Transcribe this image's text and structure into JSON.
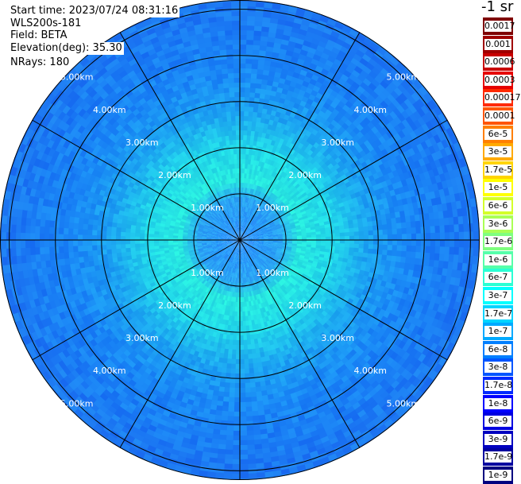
{
  "info": {
    "start_time": "Start time: 2023/07/24 08:31:16",
    "instrument": "WLS200s-181",
    "field": "Field: BETA",
    "elevation": "Elevation(deg): 35.30",
    "nrays": "NRays: 180"
  },
  "chart_data": {
    "type": "heatmap",
    "projection": "polar-ppi",
    "field": "BETA",
    "elevation_deg": 35.3,
    "nrays": 180,
    "max_range_km": 5.2,
    "range_rings_km": [
      1,
      2,
      3,
      4,
      5
    ],
    "ring_labels": [
      "1.00km",
      "2.00km",
      "3.00km",
      "4.00km",
      "5.00km"
    ],
    "spokes_deg": [
      0,
      30,
      60,
      90,
      120,
      150,
      180,
      210,
      240,
      270,
      300,
      330
    ],
    "colorbar": {
      "title": "-1 sr",
      "labels": [
        "0.0017",
        "0.001",
        "0.0006",
        "0.0003",
        "0.00017",
        "0.0001",
        "6e-5",
        "3e-5",
        "1.7e-5",
        "1e-5",
        "6e-6",
        "3e-6",
        "1.7e-6",
        "1e-6",
        "6e-7",
        "3e-7",
        "1.7e-7",
        "1e-7",
        "6e-8",
        "3e-8",
        "1.7e-8",
        "1e-8",
        "6e-9",
        "3e-9",
        "1.7e-9",
        "1e-9"
      ],
      "colors": [
        "#7f0000",
        "#a00000",
        "#c80000",
        "#e60000",
        "#ff2a00",
        "#ff5500",
        "#ff7f00",
        "#ffaa00",
        "#ffd400",
        "#ffff00",
        "#d4ff2a",
        "#aaff55",
        "#7fff7f",
        "#55ffaa",
        "#2affd4",
        "#00ffff",
        "#00d4ff",
        "#00aaff",
        "#007fff",
        "#0055ff",
        "#002aff",
        "#0000ff",
        "#0000e0",
        "#0000c0",
        "#0000a0",
        "#000080"
      ]
    },
    "radial_profile": [
      {
        "range_km": 0.0,
        "color": "#1e8cff"
      },
      {
        "range_km": 0.9,
        "color": "#2aa4f4"
      },
      {
        "range_km": 1.3,
        "color": "#28e8e0"
      },
      {
        "range_km": 2.0,
        "color": "#22d8ea"
      },
      {
        "range_km": 2.8,
        "color": "#1ca2f2"
      },
      {
        "range_km": 3.6,
        "color": "#1a88f6"
      },
      {
        "range_km": 4.5,
        "color": "#1a7cf4"
      },
      {
        "range_km": 5.2,
        "color": "#1e78f2"
      }
    ]
  }
}
